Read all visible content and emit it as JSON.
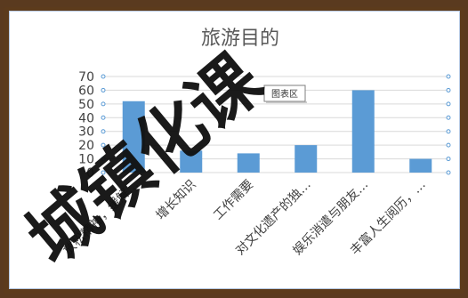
{
  "watermark": "城镇化课",
  "chart_area_label": "图表区",
  "chart_data": {
    "type": "bar",
    "title": "旅游目的",
    "categories": [
      "放松精神，缓解…",
      "增长知识",
      "工作需要",
      "对文化遗产的独…",
      "娱乐消遣与朋友…",
      "丰富人生阅历，…"
    ],
    "values": [
      52,
      16,
      14,
      20,
      60,
      10
    ],
    "ylim": [
      0,
      70
    ],
    "yticks": [
      0,
      10,
      20,
      30,
      40,
      50,
      60,
      70
    ],
    "grid": true,
    "bar_color": "#5b9bd5"
  }
}
